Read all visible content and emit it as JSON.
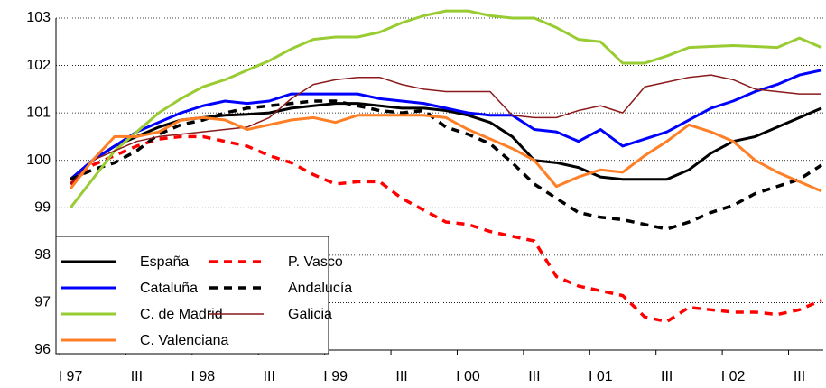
{
  "chart_data": {
    "type": "line",
    "categories": [
      "I 97",
      null,
      null,
      "III",
      null,
      null,
      "I 98",
      null,
      null,
      "III",
      null,
      null,
      "I 99",
      null,
      null,
      "III",
      null,
      null,
      "I 00",
      null,
      null,
      "III",
      null,
      null,
      "I 01",
      null,
      null,
      "III",
      null,
      null,
      "I 02",
      null,
      null,
      "III",
      null
    ],
    "ylim": [
      96,
      103
    ],
    "yticks": [
      96,
      97,
      98,
      99,
      100,
      101,
      102,
      103
    ],
    "grid": true,
    "legend": "lower left",
    "series": [
      {
        "name": "España",
        "color": "#000000",
        "line_style": "solid",
        "values": [
          99.6,
          100.0,
          100.3,
          100.5,
          100.7,
          100.85,
          100.9,
          100.95,
          100.97,
          101.0,
          101.1,
          101.15,
          101.2,
          101.2,
          101.15,
          101.1,
          101.1,
          101.05,
          100.95,
          100.8,
          100.5,
          100.0,
          99.95,
          99.85,
          99.65,
          99.6,
          99.6,
          99.6,
          99.8,
          100.15,
          100.4,
          100.5,
          100.7,
          100.9,
          101.1
        ]
      },
      {
        "name": "P. Vasco",
        "color": "#ff0000",
        "line_style": "dashed",
        "values": [
          99.5,
          99.9,
          100.1,
          100.3,
          100.45,
          100.5,
          100.5,
          100.4,
          100.3,
          100.1,
          99.95,
          99.7,
          99.5,
          99.55,
          99.55,
          99.2,
          98.95,
          98.7,
          98.65,
          98.5,
          98.4,
          98.3,
          97.55,
          97.35,
          97.25,
          97.15,
          96.7,
          96.6,
          96.9,
          96.85,
          96.8,
          96.8,
          96.75,
          96.85,
          97.05
        ]
      },
      {
        "name": "Cataluña",
        "color": "#0000ff",
        "line_style": "solid",
        "values": [
          99.6,
          100.0,
          100.3,
          100.6,
          100.8,
          101.0,
          101.15,
          101.25,
          101.2,
          101.25,
          101.4,
          101.4,
          101.4,
          101.4,
          101.3,
          101.25,
          101.2,
          101.1,
          101.0,
          100.95,
          100.95,
          100.65,
          100.6,
          100.4,
          100.65,
          100.3,
          100.45,
          100.6,
          100.85,
          101.1,
          101.25,
          101.45,
          101.6,
          101.8,
          101.9
        ]
      },
      {
        "name": "Andalucía",
        "color": "#000000",
        "line_style": "dashed",
        "values": [
          99.6,
          99.8,
          99.95,
          100.2,
          100.55,
          100.75,
          100.85,
          101.0,
          101.1,
          101.15,
          101.2,
          101.25,
          101.25,
          101.15,
          101.05,
          101.0,
          101.05,
          100.7,
          100.55,
          100.35,
          99.95,
          99.5,
          99.2,
          98.9,
          98.8,
          98.75,
          98.65,
          98.55,
          98.7,
          98.9,
          99.05,
          99.3,
          99.45,
          99.6,
          99.9
        ]
      },
      {
        "name": "C. de Madrid",
        "color": "#99cc33",
        "line_style": "solid",
        "values": [
          99.0,
          99.6,
          100.2,
          100.6,
          101.0,
          101.3,
          101.55,
          101.7,
          101.9,
          102.1,
          102.35,
          102.55,
          102.6,
          102.6,
          102.7,
          102.9,
          103.05,
          103.15,
          103.15,
          103.05,
          103.0,
          103.0,
          102.8,
          102.55,
          102.5,
          102.05,
          102.05,
          102.2,
          102.38,
          102.4,
          102.42,
          102.4,
          102.38,
          102.58,
          102.38
        ]
      },
      {
        "name": "Galicia",
        "color": "#8b1a1a",
        "line_style": "thin",
        "values": [
          99.5,
          100.0,
          100.2,
          100.4,
          100.5,
          100.55,
          100.6,
          100.65,
          100.7,
          100.9,
          101.3,
          101.6,
          101.7,
          101.75,
          101.75,
          101.6,
          101.5,
          101.45,
          101.45,
          101.45,
          100.95,
          100.9,
          100.9,
          101.05,
          101.15,
          101.0,
          101.55,
          101.65,
          101.75,
          101.8,
          101.7,
          101.5,
          101.45,
          101.4,
          101.4
        ]
      },
      {
        "name": "C. Valenciana",
        "color": "#ff7f27",
        "line_style": "solid",
        "values": [
          99.4,
          100.0,
          100.5,
          100.5,
          100.6,
          100.85,
          100.9,
          100.85,
          100.65,
          100.75,
          100.85,
          100.9,
          100.8,
          100.95,
          100.95,
          100.95,
          100.95,
          100.9,
          100.65,
          100.45,
          100.25,
          100.0,
          99.45,
          99.65,
          99.8,
          99.75,
          100.1,
          100.4,
          100.75,
          100.6,
          100.4,
          100.0,
          99.75,
          99.55,
          99.35
        ]
      }
    ]
  }
}
